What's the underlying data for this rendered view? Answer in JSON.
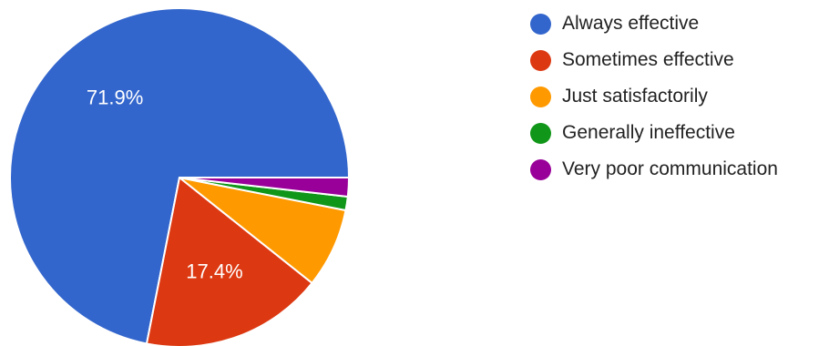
{
  "chart_data": {
    "type": "pie",
    "title": "",
    "legend_position": "right",
    "start_angle_deg": 0,
    "direction": "counterclockwise",
    "slices": [
      {
        "name": "Always effective",
        "value": 71.9,
        "color": "#3366cc",
        "label": "71.9%"
      },
      {
        "name": "Sometimes effective",
        "value": 17.4,
        "color": "#dc3912",
        "label": "17.4%"
      },
      {
        "name": "Just satisfactorily",
        "value": 7.6,
        "color": "#ff9900",
        "label": ""
      },
      {
        "name": "Generally ineffective",
        "value": 1.3,
        "color": "#109618",
        "label": ""
      },
      {
        "name": "Very poor communication",
        "value": 1.8,
        "color": "#990099",
        "label": ""
      }
    ]
  }
}
